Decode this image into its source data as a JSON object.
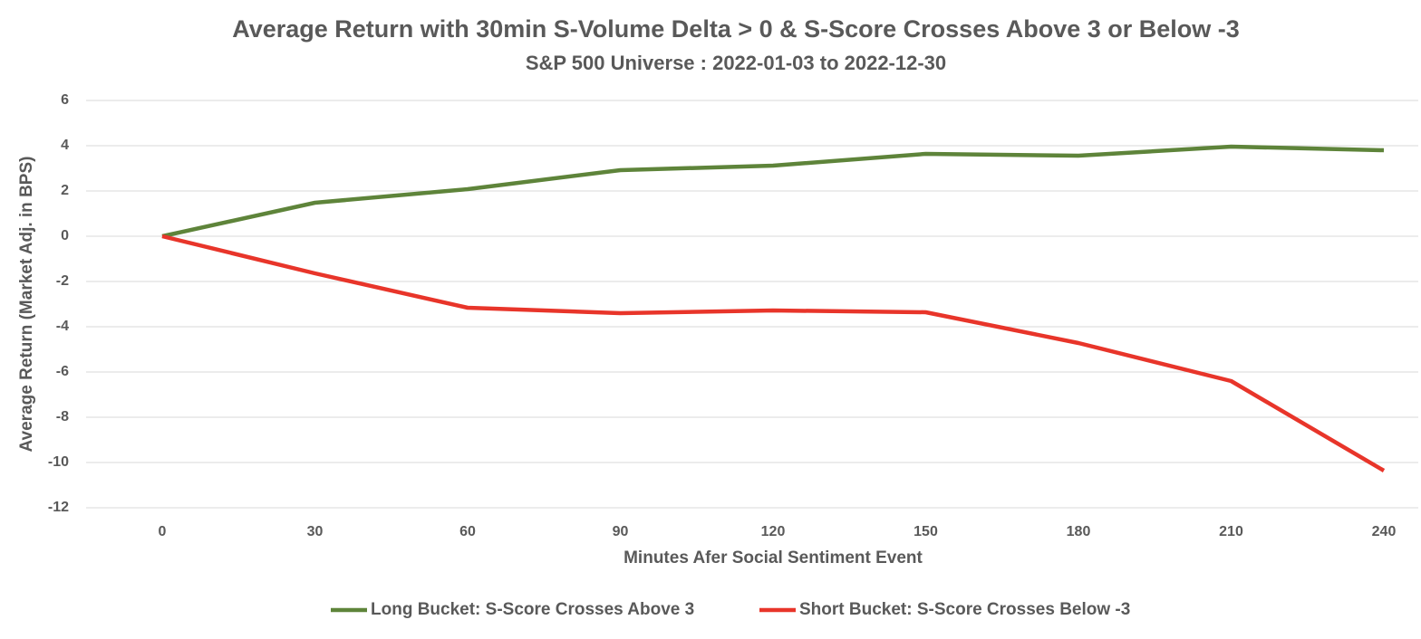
{
  "chart_data": {
    "type": "line",
    "title": "Average Return with 30min S-Volume Delta > 0 & S-Score Crosses Above 3 or Below -3",
    "subtitle": "S&P 500 Universe : 2022-01-03 to 2022-12-30",
    "x_label": "Minutes Afer Social Sentiment Event",
    "y_label": "Average Return (Market Adj. in BPS)",
    "categories": [
      "0",
      "30",
      "60",
      "90",
      "120",
      "150",
      "180",
      "210",
      "240"
    ],
    "series": [
      {
        "name": "Long Bucket: S-Score Crosses Above 3",
        "color": "#5e843a",
        "values": [
          0,
          1.48,
          2.08,
          2.92,
          3.12,
          3.64,
          3.56,
          3.96,
          3.8
        ]
      },
      {
        "name": "Short Bucket: S-Score Crosses Below -3",
        "color": "#e8352a",
        "values": [
          0,
          -1.64,
          -3.16,
          -3.4,
          -3.28,
          -3.36,
          -4.72,
          -6.4,
          -10.36
        ]
      }
    ],
    "ylim": [
      -12,
      6
    ],
    "yticks": [
      -12,
      -10,
      -8,
      -6,
      -4,
      -2,
      0,
      2,
      4,
      6
    ],
    "grid": true,
    "legend": "bottom"
  }
}
